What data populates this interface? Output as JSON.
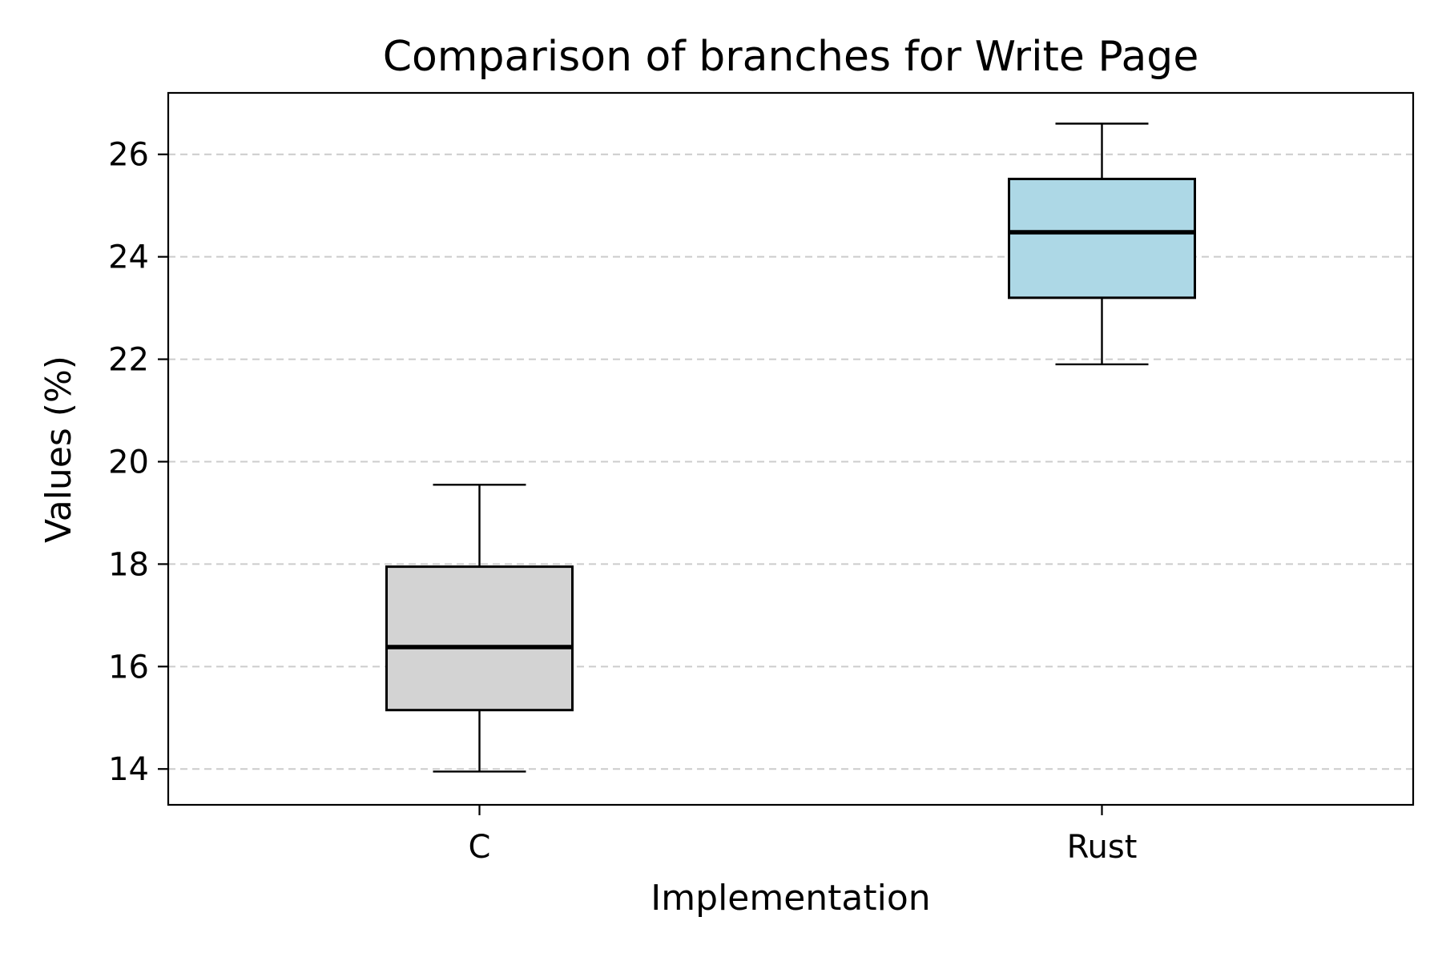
{
  "chart_data": {
    "type": "box",
    "title": "Comparison of branches for Write Page",
    "xlabel": "Implementation",
    "ylabel": "Values (%)",
    "ylim": [
      13.3,
      27.2
    ],
    "yticks": [
      14,
      16,
      18,
      20,
      22,
      24,
      26
    ],
    "grid": "y-dashed",
    "categories": [
      "C",
      "Rust"
    ],
    "boxes": [
      {
        "category": "C",
        "whisker_low": 13.95,
        "q1": 15.15,
        "median": 16.38,
        "q3": 17.95,
        "whisker_high": 19.55,
        "color": "#d3d3d3"
      },
      {
        "category": "Rust",
        "whisker_low": 21.9,
        "q1": 23.2,
        "median": 24.48,
        "q3": 25.52,
        "whisker_high": 26.6,
        "color": "#add8e6"
      }
    ]
  }
}
